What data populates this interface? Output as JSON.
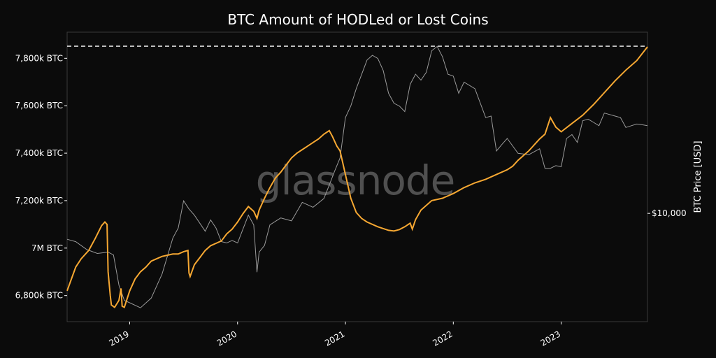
{
  "colors": {
    "background": "#0b0b0b",
    "plot_background": "#0f0f0f",
    "hodl_series": "#f7a832",
    "price_series": "#9a9a9a",
    "ath_line": "#ffffff",
    "frame": "#3a3a3a"
  },
  "watermark": "glassnode",
  "chart_data": {
    "type": "line",
    "title": "BTC Amount of HODLed or Lost Coins",
    "xlabel": "",
    "ylabel": "",
    "y2label": "BTC Price [USD]",
    "grid": false,
    "legend": "none",
    "xlim": [
      2018.42,
      2023.8
    ],
    "ylim": [
      6690,
      7910
    ],
    "y_ticks": [
      6800,
      7000,
      7200,
      7400,
      7600,
      7800
    ],
    "y_tick_labels": [
      "6,800k BTC",
      "7M BTC",
      "7,200k BTC",
      "7,400k BTC",
      "7,600k BTC",
      "7,800k BTC"
    ],
    "x_ticks": [
      2019,
      2020,
      2021,
      2022,
      2023
    ],
    "x_tick_labels": [
      "2019",
      "2020",
      "2021",
      "2022",
      "2023"
    ],
    "y2_scale": "log",
    "y2lim": [
      3000,
      75000
    ],
    "y2_ticks": [
      10000
    ],
    "y2_tick_labels": [
      "$10,000"
    ],
    "reference_line": {
      "style": "dashed",
      "y": 7851
    },
    "series": [
      {
        "axis": "left",
        "x": [
          2018.42,
          2018.5,
          2018.55,
          2018.62,
          2018.68,
          2018.74,
          2018.77,
          2018.79,
          2018.8,
          2018.82,
          2018.83,
          2018.86,
          2018.9,
          2018.92,
          2018.93,
          2018.95,
          2019.0,
          2019.05,
          2019.1,
          2019.15,
          2019.2,
          2019.25,
          2019.3,
          2019.35,
          2019.4,
          2019.45,
          2019.5,
          2019.54,
          2019.55,
          2019.56,
          2019.6,
          2019.65,
          2019.7,
          2019.75,
          2019.8,
          2019.85,
          2019.9,
          2019.95,
          2020.0,
          2020.05,
          2020.1,
          2020.15,
          2020.18,
          2020.2,
          2020.25,
          2020.3,
          2020.35,
          2020.4,
          2020.45,
          2020.5,
          2020.55,
          2020.6,
          2020.65,
          2020.7,
          2020.75,
          2020.8,
          2020.85,
          2020.88,
          2020.92,
          2020.95,
          2021.0,
          2021.05,
          2021.1,
          2021.15,
          2021.2,
          2021.3,
          2021.4,
          2021.45,
          2021.5,
          2021.55,
          2021.6,
          2021.62,
          2021.65,
          2021.7,
          2021.8,
          2021.9,
          2022.0,
          2022.1,
          2022.2,
          2022.3,
          2022.4,
          2022.5,
          2022.55,
          2022.6,
          2022.7,
          2022.8,
          2022.85,
          2022.9,
          2022.95,
          2023.0,
          2023.1,
          2023.2,
          2023.3,
          2023.4,
          2023.5,
          2023.6,
          2023.7,
          2023.8
        ],
        "y": [
          6820,
          6920,
          6955,
          6990,
          7040,
          7095,
          7110,
          7100,
          6900,
          6800,
          6760,
          6750,
          6780,
          6830,
          6755,
          6750,
          6820,
          6870,
          6900,
          6920,
          6945,
          6955,
          6965,
          6970,
          6975,
          6975,
          6985,
          6990,
          6895,
          6880,
          6930,
          6960,
          6990,
          7010,
          7020,
          7030,
          7060,
          7080,
          7110,
          7145,
          7175,
          7155,
          7125,
          7160,
          7210,
          7255,
          7295,
          7320,
          7350,
          7380,
          7400,
          7415,
          7430,
          7445,
          7460,
          7480,
          7495,
          7470,
          7430,
          7410,
          7310,
          7210,
          7150,
          7125,
          7110,
          7090,
          7075,
          7072,
          7078,
          7090,
          7105,
          7080,
          7120,
          7160,
          7200,
          7210,
          7230,
          7255,
          7275,
          7290,
          7310,
          7330,
          7345,
          7370,
          7410,
          7460,
          7480,
          7550,
          7510,
          7490,
          7525,
          7560,
          7605,
          7655,
          7705,
          7750,
          7790,
          7848
        ]
      },
      {
        "axis": "right",
        "x": [
          2018.42,
          2018.5,
          2018.6,
          2018.7,
          2018.8,
          2018.85,
          2018.9,
          2018.95,
          2019.0,
          2019.1,
          2019.2,
          2019.3,
          2019.4,
          2019.45,
          2019.5,
          2019.55,
          2019.6,
          2019.7,
          2019.75,
          2019.8,
          2019.85,
          2019.9,
          2019.95,
          2020.0,
          2020.1,
          2020.15,
          2020.18,
          2020.2,
          2020.25,
          2020.3,
          2020.4,
          2020.5,
          2020.6,
          2020.7,
          2020.8,
          2020.85,
          2020.9,
          2020.95,
          2021.0,
          2021.05,
          2021.1,
          2021.2,
          2021.25,
          2021.3,
          2021.35,
          2021.4,
          2021.45,
          2021.5,
          2021.55,
          2021.6,
          2021.65,
          2021.7,
          2021.75,
          2021.8,
          2021.85,
          2021.9,
          2021.95,
          2022.0,
          2022.05,
          2022.1,
          2022.2,
          2022.3,
          2022.35,
          2022.4,
          2022.45,
          2022.5,
          2022.6,
          2022.7,
          2022.8,
          2022.85,
          2022.9,
          2022.95,
          2023.0,
          2023.05,
          2023.1,
          2023.15,
          2023.2,
          2023.25,
          2023.3,
          2023.35,
          2023.4,
          2023.45,
          2023.5,
          2023.55,
          2023.6,
          2023.65,
          2023.7,
          2023.75,
          2023.8
        ],
        "y": [
          7500,
          7300,
          6700,
          6400,
          6500,
          6300,
          4500,
          3800,
          3700,
          3500,
          3900,
          5100,
          7600,
          8500,
          11500,
          10500,
          9800,
          8200,
          9300,
          8500,
          7300,
          7200,
          7400,
          7200,
          9800,
          8800,
          5200,
          6500,
          7000,
          8800,
          9500,
          9200,
          11300,
          10700,
          11800,
          13700,
          16000,
          18500,
          29000,
          33000,
          40000,
          55000,
          58000,
          56000,
          49000,
          38000,
          34000,
          33000,
          31000,
          42000,
          47000,
          44000,
          48000,
          61000,
          64000,
          57000,
          47000,
          46000,
          38000,
          43000,
          40000,
          29000,
          29500,
          20000,
          21500,
          23000,
          19500,
          19200,
          20500,
          16500,
          16500,
          17000,
          16800,
          23000,
          24000,
          22000,
          28000,
          28500,
          27500,
          26500,
          30500,
          30000,
          29500,
          29000,
          26000,
          26500,
          27000,
          26800,
          26500
        ]
      }
    ]
  }
}
